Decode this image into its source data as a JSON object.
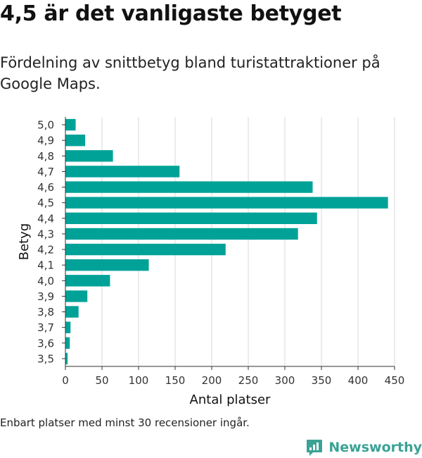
{
  "title": "4,5 är det vanligaste betyget",
  "subtitle": "Fördelning av snittbetyg bland turistattraktioner på Google Maps.",
  "note": "Enbart platser med minst 30 recensioner ingår.",
  "brand": {
    "name": "Newsworthy",
    "icon": "newsworthy-logo-icon",
    "color": "#3ba296"
  },
  "chart_data": {
    "type": "bar",
    "orientation": "horizontal",
    "xlabel": "Antal platser",
    "ylabel": "Betyg",
    "xlim": [
      0,
      450
    ],
    "xticks": [
      "0",
      "50",
      "100",
      "150",
      "200",
      "250",
      "300",
      "350",
      "400",
      "450"
    ],
    "grid": true,
    "bar_color": "#00a298",
    "categories": [
      "5,0",
      "4,9",
      "4,8",
      "4,7",
      "4,6",
      "4,5",
      "4,4",
      "4,3",
      "4,2",
      "4,1",
      "4,0",
      "3,9",
      "3,8",
      "3,7",
      "3,6",
      "3,5"
    ],
    "values": [
      14,
      27,
      65,
      156,
      338,
      441,
      344,
      318,
      219,
      114,
      61,
      30,
      18,
      7,
      6,
      3
    ]
  }
}
